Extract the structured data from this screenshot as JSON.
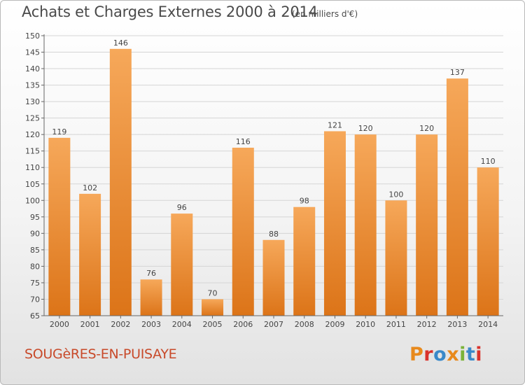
{
  "header": {
    "title": "Achats et Charges Externes 2000 à 2014",
    "subtitle": "(en milliers d'€)"
  },
  "footer": {
    "commune": "SOUGèRES-EN-PUISAYE",
    "logo_text": "Proxiti",
    "logo_colors": [
      "#e8891c",
      "#d9322c",
      "#3a89c9",
      "#e8891c",
      "#7bb339",
      "#3a89c9",
      "#d9322c"
    ]
  },
  "colors": {
    "bar_light": "#f6a85a",
    "bar_dark": "#dc7418",
    "grid": "#d5d5d5",
    "axis": "#666666"
  },
  "chart_data": {
    "type": "bar",
    "categories": [
      "2000",
      "2001",
      "2002",
      "2003",
      "2004",
      "2005",
      "2006",
      "2007",
      "2008",
      "2009",
      "2010",
      "2011",
      "2012",
      "2013",
      "2014"
    ],
    "values": [
      119,
      102,
      146,
      76,
      96,
      70,
      116,
      88,
      98,
      121,
      120,
      100,
      120,
      137,
      110
    ],
    "ylim": [
      65,
      150
    ],
    "yticks": [
      65,
      70,
      75,
      80,
      85,
      90,
      95,
      100,
      105,
      110,
      115,
      120,
      125,
      130,
      135,
      140,
      145,
      150
    ],
    "grid": true,
    "xlabel": "",
    "ylabel": ""
  }
}
